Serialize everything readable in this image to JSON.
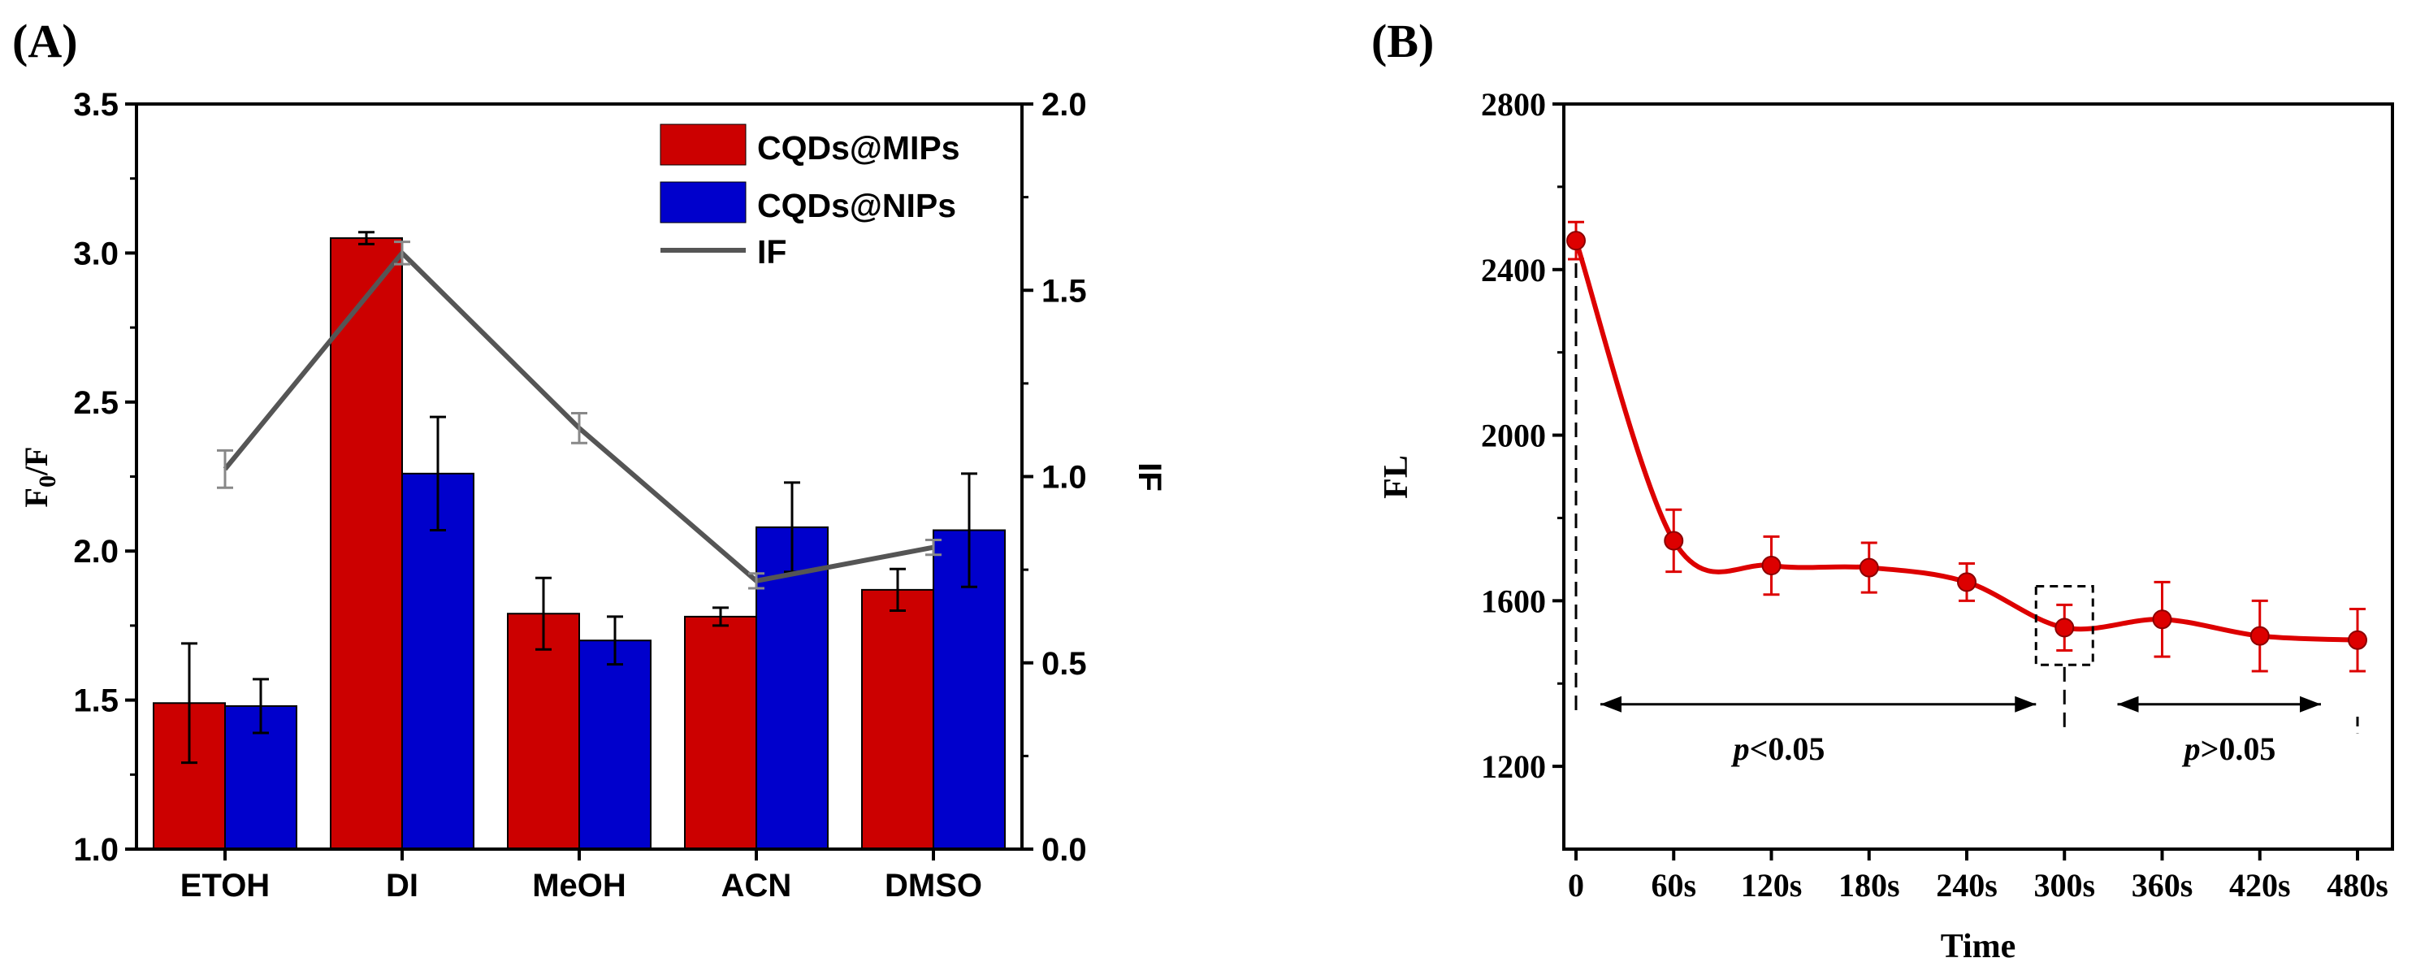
{
  "chart_data": [
    {
      "panel_label": "(A)",
      "type": "bar",
      "categories": [
        "ETOH",
        "DI",
        "MeOH",
        "ACN",
        "DMSO"
      ],
      "series": [
        {
          "name": "CQDs@MIPs",
          "color": "#cc0000",
          "values": [
            1.49,
            3.05,
            1.79,
            1.78,
            1.87
          ],
          "errors": [
            0.2,
            0.02,
            0.12,
            0.03,
            0.07
          ]
        },
        {
          "name": "CQDs@NIPs",
          "color": "#0000cc",
          "values": [
            1.48,
            2.26,
            1.7,
            2.08,
            2.07
          ],
          "errors": [
            0.09,
            0.19,
            0.08,
            0.15,
            0.19
          ]
        }
      ],
      "line_series": {
        "name": "IF",
        "color": "#555555",
        "values": [
          1.02,
          1.6,
          1.13,
          0.72,
          0.81
        ],
        "errors": [
          0.05,
          0.03,
          0.04,
          0.02,
          0.02
        ]
      },
      "ylabel": {
        "main": "F",
        "sub": "0",
        "rest": "/F"
      },
      "y2label": "IF",
      "ylim": [
        1.0,
        3.5
      ],
      "yticks": [
        "1.0",
        "1.5",
        "2.0",
        "2.5",
        "3.0",
        "3.5"
      ],
      "y2lim": [
        0.0,
        2.0
      ],
      "y2ticks": [
        "0.0",
        "0.5",
        "1.0",
        "1.5",
        "2.0"
      ],
      "legend_position": "top-right"
    },
    {
      "panel_label": "(B)",
      "type": "line",
      "categories": [
        "0",
        "60s",
        "120s",
        "180s",
        "240s",
        "300s",
        "360s",
        "420s",
        "480s"
      ],
      "values": [
        2470,
        1745,
        1685,
        1680,
        1645,
        1535,
        1555,
        1515,
        1505
      ],
      "errors": [
        45,
        75,
        70,
        60,
        45,
        55,
        90,
        85,
        75
      ],
      "color": "#dd0000",
      "xlabel": "Time",
      "ylabel": "FL",
      "ylim": [
        1000,
        2800
      ],
      "yticks": [
        "1200",
        "1600",
        "2000",
        "2400",
        "2800"
      ],
      "annotations": [
        {
          "p": "p",
          "text": "<0.05"
        },
        {
          "p": "p",
          "text": ">0.05"
        }
      ]
    }
  ]
}
